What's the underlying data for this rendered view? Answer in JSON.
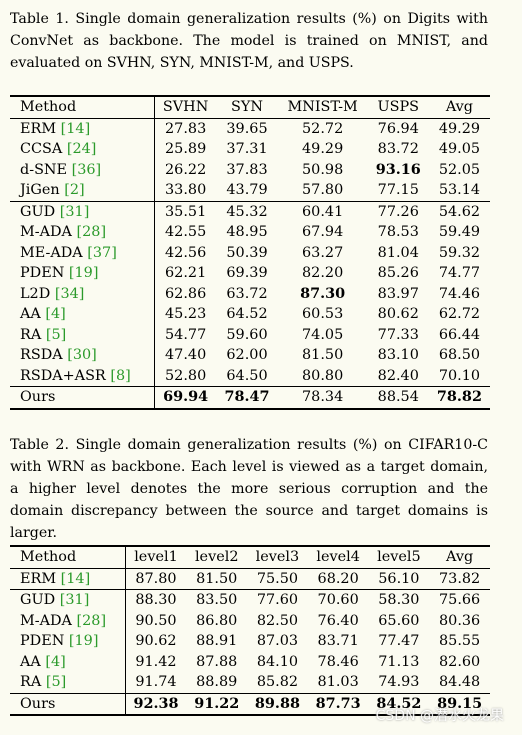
{
  "table1": {
    "caption": "Table 1. Single domain generalization results (%) on Digits with ConvNet as backbone. The model is trained on MNIST, and evaluated on SVHN, SYN, MNIST-M, and USPS.",
    "headers": [
      "Method",
      "SVHN",
      "SYN",
      "MNIST-M",
      "USPS",
      "Avg"
    ],
    "rows": [
      {
        "name": "ERM",
        "cite": "14",
        "vals": [
          "27.83",
          "39.65",
          "52.72",
          "76.94",
          "49.29"
        ],
        "bold": []
      },
      {
        "name": "CCSA",
        "cite": "24",
        "vals": [
          "25.89",
          "37.31",
          "49.29",
          "83.72",
          "49.05"
        ],
        "bold": []
      },
      {
        "name": "d-SNE",
        "cite": "36",
        "vals": [
          "26.22",
          "37.83",
          "50.98",
          "93.16",
          "52.05"
        ],
        "bold": [
          3
        ]
      },
      {
        "name": "JiGen",
        "cite": "2",
        "vals": [
          "33.80",
          "43.79",
          "57.80",
          "77.15",
          "53.14"
        ],
        "bold": []
      },
      {
        "name": "GUD",
        "cite": "31",
        "vals": [
          "35.51",
          "45.32",
          "60.41",
          "77.26",
          "54.62"
        ],
        "bold": [],
        "group_start": true
      },
      {
        "name": "M-ADA",
        "cite": "28",
        "vals": [
          "42.55",
          "48.95",
          "67.94",
          "78.53",
          "59.49"
        ],
        "bold": []
      },
      {
        "name": "ME-ADA",
        "cite": "37",
        "vals": [
          "42.56",
          "50.39",
          "63.27",
          "81.04",
          "59.32"
        ],
        "bold": []
      },
      {
        "name": "PDEN",
        "cite": "19",
        "vals": [
          "62.21",
          "69.39",
          "82.20",
          "85.26",
          "74.77"
        ],
        "bold": []
      },
      {
        "name": "L2D",
        "cite": "34",
        "vals": [
          "62.86",
          "63.72",
          "87.30",
          "83.97",
          "74.46"
        ],
        "bold": [
          2
        ]
      },
      {
        "name": "AA",
        "cite": "4",
        "vals": [
          "45.23",
          "64.52",
          "60.53",
          "80.62",
          "62.72"
        ],
        "bold": []
      },
      {
        "name": "RA",
        "cite": "5",
        "vals": [
          "54.77",
          "59.60",
          "74.05",
          "77.33",
          "66.44"
        ],
        "bold": []
      },
      {
        "name": "RSDA",
        "cite": "30",
        "vals": [
          "47.40",
          "62.00",
          "81.50",
          "83.10",
          "68.50"
        ],
        "bold": []
      },
      {
        "name": "RSDA+ASR",
        "cite": "8",
        "vals": [
          "52.80",
          "64.50",
          "80.80",
          "82.40",
          "70.10"
        ],
        "bold": []
      },
      {
        "name": "Ours",
        "cite": "",
        "vals": [
          "69.94",
          "78.47",
          "78.34",
          "88.54",
          "78.82"
        ],
        "bold": [
          0,
          1,
          4
        ],
        "ours": true
      }
    ]
  },
  "table2": {
    "caption": "Table 2. Single domain generalization results (%) on CIFAR10-C with WRN as backbone. Each level is viewed as a target domain, a higher level denotes the more serious corruption and the domain discrepancy between the source and target domains is larger.",
    "headers": [
      "Method",
      "level1",
      "level2",
      "level3",
      "level4",
      "level5",
      "Avg"
    ],
    "rows": [
      {
        "name": "ERM",
        "cite": "14",
        "vals": [
          "87.80",
          "81.50",
          "75.50",
          "68.20",
          "56.10",
          "73.82"
        ],
        "bold": []
      },
      {
        "name": "GUD",
        "cite": "31",
        "vals": [
          "88.30",
          "83.50",
          "77.60",
          "70.60",
          "58.30",
          "75.66"
        ],
        "bold": [],
        "group_start": true
      },
      {
        "name": "M-ADA",
        "cite": "28",
        "vals": [
          "90.50",
          "86.80",
          "82.50",
          "76.40",
          "65.60",
          "80.36"
        ],
        "bold": []
      },
      {
        "name": "PDEN",
        "cite": "19",
        "vals": [
          "90.62",
          "88.91",
          "87.03",
          "83.71",
          "77.47",
          "85.55"
        ],
        "bold": []
      },
      {
        "name": "AA",
        "cite": "4",
        "vals": [
          "91.42",
          "87.88",
          "84.10",
          "78.46",
          "71.13",
          "82.60"
        ],
        "bold": []
      },
      {
        "name": "RA",
        "cite": "5",
        "vals": [
          "91.74",
          "88.89",
          "85.82",
          "81.03",
          "74.93",
          "84.48"
        ],
        "bold": []
      },
      {
        "name": "Ours",
        "cite": "",
        "vals": [
          "92.38",
          "91.22",
          "89.88",
          "87.73",
          "84.52",
          "89.15"
        ],
        "bold": [
          0,
          1,
          2,
          3,
          4,
          5
        ],
        "ours": true
      }
    ]
  },
  "watermark": "CSDN @潜水火龙果"
}
